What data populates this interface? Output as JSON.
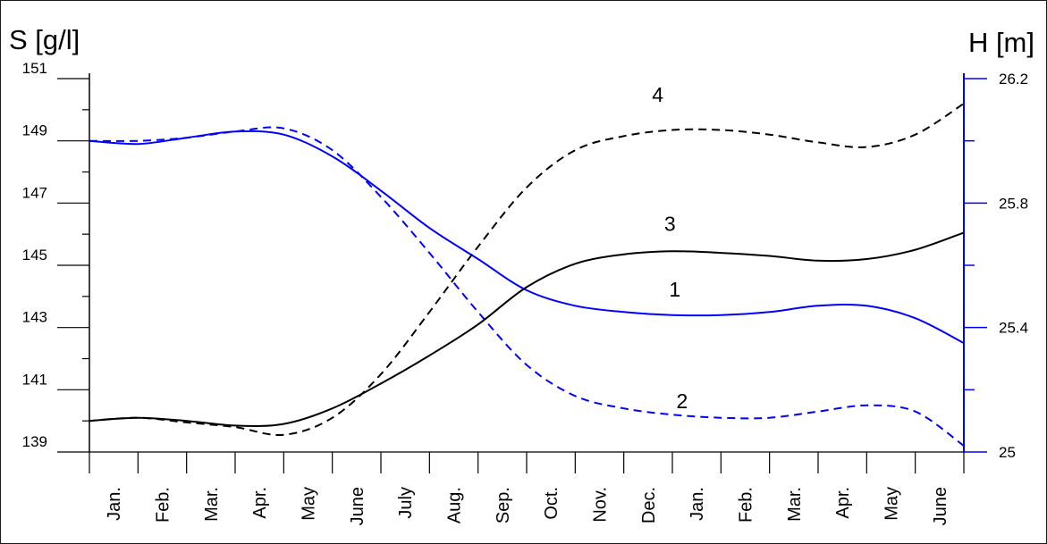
{
  "chart_data": {
    "type": "line",
    "title": "",
    "left_axis": {
      "label": "S [g/l]",
      "min": 139,
      "max": 151,
      "ticks": [
        139,
        141,
        143,
        145,
        147,
        149,
        151
      ],
      "tick_labels": [
        "139",
        "141",
        "143",
        "145",
        "147",
        "149",
        "151"
      ],
      "minor_step": 1
    },
    "right_axis": {
      "label": "H [m]",
      "min": 25,
      "max": 26.2,
      "ticks": [
        25,
        25.4,
        25.8,
        26.2
      ],
      "tick_labels": [
        "25",
        "25.4",
        "25.8",
        "26.2"
      ],
      "minor_step": 0.2,
      "color": "#0000ff"
    },
    "x_categories": [
      "Jan.",
      "Feb.",
      "Mar.",
      "Apr.",
      "May",
      "June",
      "July",
      "Aug.",
      "Sep.",
      "Oct.",
      "Nov.",
      "Dec.",
      "Jan.",
      "Feb.",
      "Mar.",
      "Apr.",
      "May",
      "June"
    ],
    "x_positions": [
      0,
      1,
      2,
      3,
      4,
      5,
      6,
      7,
      8,
      9,
      10,
      11,
      12,
      13,
      14,
      15,
      16,
      17,
      18
    ],
    "grid": false,
    "series": [
      {
        "name": "1",
        "axis": "right",
        "color": "#0000ff",
        "dash": "solid",
        "label_at": [
          12.05,
          25.5
        ],
        "x": [
          0,
          1,
          2,
          3,
          4,
          5,
          6,
          7,
          8,
          9,
          10,
          11,
          12,
          13,
          14,
          15,
          16,
          17,
          18
        ],
        "y": [
          26.0,
          25.99,
          26.01,
          26.03,
          26.02,
          25.95,
          25.84,
          25.72,
          25.62,
          25.52,
          25.47,
          25.45,
          25.44,
          25.44,
          25.45,
          25.47,
          25.47,
          25.43,
          25.35
        ]
      },
      {
        "name": "2",
        "axis": "right",
        "color": "#0000ff",
        "dash": "dashed",
        "label_at": [
          12.2,
          25.14
        ],
        "x": [
          0,
          1,
          2,
          3,
          4,
          5,
          6,
          7,
          8,
          9,
          10,
          11,
          12,
          13,
          14,
          15,
          16,
          17,
          18
        ],
        "y": [
          26.0,
          26.0,
          26.01,
          26.03,
          26.04,
          25.97,
          25.82,
          25.64,
          25.45,
          25.28,
          25.18,
          25.14,
          25.12,
          25.11,
          25.11,
          25.13,
          25.15,
          25.13,
          25.02
        ]
      },
      {
        "name": "3",
        "axis": "left",
        "color": "#000000",
        "dash": "solid",
        "label_at": [
          11.95,
          146.1
        ],
        "x": [
          0,
          1,
          2,
          3,
          4,
          5,
          6,
          7,
          8,
          9,
          10,
          11,
          12,
          13,
          14,
          15,
          16,
          17,
          18
        ],
        "y": [
          140.0,
          140.1,
          140.0,
          139.85,
          139.9,
          140.4,
          141.2,
          142.1,
          143.1,
          144.3,
          145.05,
          145.35,
          145.45,
          145.4,
          145.3,
          145.15,
          145.2,
          145.5,
          146.05
        ]
      },
      {
        "name": "4",
        "axis": "left",
        "color": "#000000",
        "dash": "dashed",
        "label_at": [
          11.7,
          150.25
        ],
        "x": [
          0,
          1,
          2,
          3,
          4,
          5,
          6,
          7,
          8,
          9,
          10,
          11,
          12,
          13,
          14,
          15,
          16,
          17,
          18
        ],
        "y": [
          140.0,
          140.1,
          139.95,
          139.8,
          139.55,
          140.1,
          141.5,
          143.5,
          145.6,
          147.5,
          148.7,
          149.15,
          149.35,
          149.35,
          149.2,
          148.95,
          148.8,
          149.2,
          150.2
        ]
      }
    ]
  }
}
